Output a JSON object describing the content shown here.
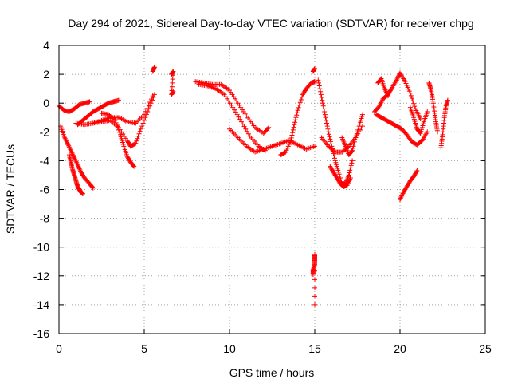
{
  "chart_data": {
    "type": "scatter",
    "title": "Day 294 of 2021, Sidereal Day-to-day VTEC variation (SDTVAR) for receiver chpg",
    "xlabel": "GPS time / hours",
    "ylabel": "SDTVAR / TECUs",
    "xlim": [
      0,
      25
    ],
    "ylim": [
      -16,
      4
    ],
    "xticks": [
      0,
      5,
      10,
      15,
      20,
      25
    ],
    "yticks": [
      -16,
      -14,
      -12,
      -10,
      -8,
      -6,
      -4,
      -2,
      0,
      2,
      4
    ],
    "grid": true,
    "marker": "plus",
    "color": "#ff0000",
    "series": [
      {
        "name": "s1",
        "x": [
          0.1,
          0.3,
          0.5,
          0.7,
          0.9,
          1.1,
          1.3,
          1.5,
          1.8,
          2.0
        ],
        "y": [
          -1.6,
          -2.3,
          -2.8,
          -3.3,
          -3.8,
          -4.3,
          -4.8,
          -5.2,
          -5.6,
          -5.9
        ]
      },
      {
        "name": "s2",
        "x": [
          0.6,
          0.7,
          0.8,
          0.9,
          1.0,
          1.1,
          1.2,
          1.3,
          1.4
        ],
        "y": [
          -3.6,
          -4.1,
          -4.6,
          -5.0,
          -5.4,
          -5.8,
          -6.0,
          -6.2,
          -6.3
        ]
      },
      {
        "name": "s3",
        "x": [
          0.0,
          0.3,
          0.6,
          0.9,
          1.2,
          1.5,
          1.8
        ],
        "y": [
          -0.2,
          -0.5,
          -0.6,
          -0.4,
          -0.1,
          0.0,
          0.1
        ]
      },
      {
        "name": "s4",
        "x": [
          1.1,
          1.4,
          1.7,
          2.0,
          2.3,
          2.6,
          2.9,
          3.2,
          3.5
        ],
        "y": [
          -1.5,
          -1.2,
          -0.9,
          -0.6,
          -0.4,
          -0.2,
          0.0,
          0.1,
          0.2
        ]
      },
      {
        "name": "s5",
        "x": [
          1.0,
          1.5,
          2.0,
          2.5,
          3.0,
          3.5,
          4.0,
          4.5,
          5.0,
          5.5
        ],
        "y": [
          -1.4,
          -1.5,
          -1.4,
          -1.2,
          -1.0,
          -1.0,
          -1.3,
          -1.4,
          -0.8,
          0.5
        ]
      },
      {
        "name": "s6",
        "x": [
          2.0,
          2.5,
          3.0,
          3.5,
          4.0,
          4.2,
          4.5,
          4.8,
          5.2,
          5.6
        ],
        "y": [
          -1.4,
          -1.3,
          -1.2,
          -1.7,
          -2.6,
          -3.0,
          -2.8,
          -1.8,
          -0.6,
          0.6
        ]
      },
      {
        "name": "s7",
        "x": [
          2.5,
          2.9,
          3.3,
          3.6,
          3.8,
          4.0,
          4.2,
          4.4
        ],
        "y": [
          -0.7,
          -0.8,
          -1.2,
          -2.2,
          -3.0,
          -3.7,
          -4.1,
          -4.4
        ]
      },
      {
        "name": "s8",
        "x": [
          5.5,
          5.6
        ],
        "y": [
          2.2,
          2.5
        ]
      },
      {
        "name": "s9",
        "x": [
          6.6,
          6.7,
          6.6,
          6.7
        ],
        "y": [
          2.0,
          2.2,
          0.6,
          0.8
        ]
      },
      {
        "name": "s10",
        "x": [
          8.0,
          8.5,
          9.0,
          9.5,
          10.0,
          10.5,
          11.0,
          11.5,
          12.0,
          12.3
        ],
        "y": [
          1.5,
          1.4,
          1.3,
          1.3,
          0.9,
          0.0,
          -0.9,
          -1.7,
          -2.1,
          -1.7
        ]
      },
      {
        "name": "s11",
        "x": [
          8.2,
          8.7,
          9.2,
          9.7,
          10.2,
          10.7,
          11.2,
          11.7,
          12.1
        ],
        "y": [
          1.3,
          1.2,
          1.0,
          0.6,
          -0.3,
          -1.3,
          -2.3,
          -3.0,
          -3.3
        ]
      },
      {
        "name": "s12",
        "x": [
          10.0,
          10.5,
          11.0,
          11.5,
          12.0,
          12.5,
          13.0,
          13.5,
          14.0,
          14.5,
          15.0
        ],
        "y": [
          -1.8,
          -2.4,
          -3.0,
          -3.4,
          -3.2,
          -3.0,
          -2.8,
          -2.6,
          -2.9,
          -3.2,
          -3.0
        ]
      },
      {
        "name": "s13",
        "x": [
          13.0,
          13.3,
          13.6,
          13.8,
          14.0,
          14.3,
          14.5,
          14.8,
          15.0
        ],
        "y": [
          -3.6,
          -3.4,
          -2.6,
          -1.5,
          -0.5,
          0.6,
          1.0,
          1.4,
          1.5
        ]
      },
      {
        "name": "s14",
        "x": [
          14.9,
          15.0
        ],
        "y": [
          2.2,
          2.4
        ]
      },
      {
        "name": "s15",
        "x": [
          15.2,
          15.4,
          15.6,
          15.8,
          16.0,
          16.2,
          16.4,
          16.6,
          16.8,
          17.0,
          17.2
        ],
        "y": [
          1.6,
          0.4,
          -0.8,
          -2.0,
          -3.0,
          -4.0,
          -4.8,
          -5.6,
          -5.6,
          -5.0,
          -4.0
        ]
      },
      {
        "name": "s16",
        "x": [
          15.4,
          15.8,
          16.2,
          16.6,
          17.0,
          17.4,
          17.8
        ],
        "y": [
          -2.4,
          -3.0,
          -3.4,
          -3.4,
          -3.0,
          -2.4,
          -1.6
        ]
      },
      {
        "name": "s17",
        "x": [
          15.9,
          16.1,
          16.3,
          16.5,
          16.7,
          16.9,
          17.1
        ],
        "y": [
          -4.4,
          -4.8,
          -5.2,
          -5.6,
          -5.8,
          -5.7,
          -5.2
        ]
      },
      {
        "name": "s18",
        "x": [
          16.6,
          16.8,
          17.0,
          17.2,
          17.4,
          17.6,
          17.8
        ],
        "y": [
          -2.4,
          -3.0,
          -3.6,
          -3.3,
          -2.4,
          -1.6,
          -0.8
        ]
      },
      {
        "name": "s19",
        "x": [
          14.9,
          14.9,
          15.0,
          15.0,
          15.0,
          15.0
        ],
        "y": [
          -11.9,
          -11.6,
          -11.2,
          -10.8,
          -10.5,
          -14.0
        ]
      },
      {
        "name": "s20",
        "x": [
          18.5,
          18.8,
          19.0,
          19.3,
          19.5,
          19.8,
          20.0,
          20.3,
          20.6,
          20.9,
          21.2
        ],
        "y": [
          -0.6,
          -0.2,
          0.3,
          0.6,
          1.0,
          1.6,
          2.1,
          1.5,
          0.7,
          -0.4,
          -1.1
        ]
      },
      {
        "name": "s21",
        "x": [
          18.6,
          18.9,
          19.2,
          19.5,
          19.8,
          20.1,
          20.4,
          20.7,
          21.0,
          21.3,
          21.6
        ],
        "y": [
          -0.8,
          -1.0,
          -1.2,
          -1.4,
          -1.6,
          -1.8,
          -2.2,
          -2.7,
          -2.9,
          -2.6,
          -2.0
        ]
      },
      {
        "name": "s22",
        "x": [
          18.7,
          18.9,
          19.1,
          19.3
        ],
        "y": [
          1.4,
          1.7,
          1.0,
          0.5
        ]
      },
      {
        "name": "s23",
        "x": [
          20.6,
          20.8,
          21.0,
          21.2,
          21.4,
          21.6
        ],
        "y": [
          -0.3,
          -1.0,
          -1.8,
          -2.1,
          -1.3,
          -0.6
        ]
      },
      {
        "name": "s24",
        "x": [
          20.0,
          20.2,
          20.4,
          20.6,
          20.8,
          21.0
        ],
        "y": [
          -6.7,
          -6.2,
          -5.8,
          -5.4,
          -5.1,
          -4.7
        ]
      },
      {
        "name": "s25",
        "x": [
          21.7,
          21.8,
          21.9,
          22.0,
          22.1,
          22.2
        ],
        "y": [
          1.4,
          1.0,
          0.4,
          -0.4,
          -1.3,
          -2.0
        ]
      },
      {
        "name": "s26",
        "x": [
          22.4,
          22.5,
          22.6,
          22.7,
          22.8
        ],
        "y": [
          -3.1,
          -2.2,
          -1.0,
          -0.2,
          0.2
        ]
      }
    ]
  }
}
